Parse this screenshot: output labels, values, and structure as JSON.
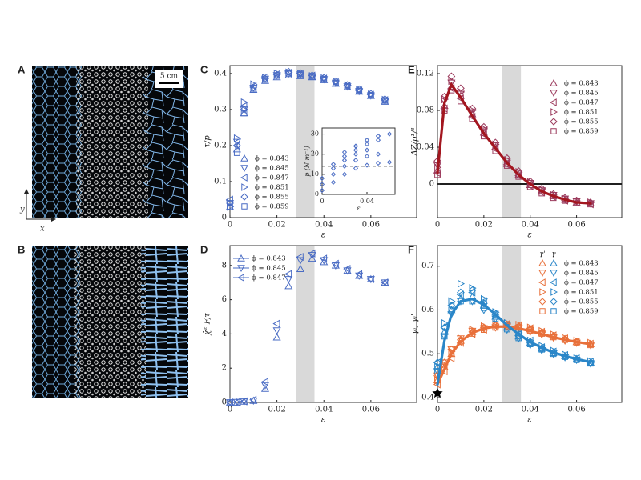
{
  "image_panels": [
    {
      "label": "A",
      "scale_bar": "5 cm",
      "x_axis_label": "x",
      "y_axis_label": "y"
    },
    {
      "label": "B"
    }
  ],
  "chart_data": [
    {
      "type": "scatter",
      "panel_label": "C",
      "x_label": "ε",
      "y_label": "τ/p",
      "xlim": [
        0,
        0.0795
      ],
      "ylim": [
        0,
        0.422
      ],
      "xticks": [
        0,
        0.02,
        0.04,
        0.06
      ],
      "yticks": [
        0,
        0.1,
        0.2,
        0.3,
        0.4
      ],
      "shaded_range": [
        0.028,
        0.036
      ],
      "legend": "lower-left",
      "x": [
        0,
        0.003,
        0.006,
        0.01,
        0.015,
        0.02,
        0.025,
        0.03,
        0.035,
        0.04,
        0.045,
        0.05,
        0.055,
        0.06,
        0.066
      ],
      "series": [
        {
          "name": "ϕ = 0.843",
          "marker": "triangle-up",
          "color": "#4a6cc4",
          "values": [
            0.03,
            0.19,
            0.29,
            0.355,
            0.38,
            0.39,
            0.395,
            0.393,
            0.39,
            0.382,
            0.372,
            0.362,
            0.35,
            0.338,
            0.322
          ]
        },
        {
          "name": "ϕ = 0.845",
          "marker": "triangle-down",
          "color": "#4a6cc4",
          "values": [
            0.04,
            0.21,
            0.3,
            0.36,
            0.385,
            0.395,
            0.4,
            0.397,
            0.392,
            0.384,
            0.374,
            0.364,
            0.351,
            0.339,
            0.324
          ]
        },
        {
          "name": "ϕ = 0.847",
          "marker": "triangle-left",
          "color": "#4a6cc4",
          "values": [
            0.05,
            0.2,
            0.31,
            0.365,
            0.39,
            0.398,
            0.402,
            0.4,
            0.394,
            0.386,
            0.376,
            0.366,
            0.353,
            0.341,
            0.326
          ]
        },
        {
          "name": "ϕ = 0.851",
          "marker": "triangle-right",
          "color": "#4a6cc4",
          "values": [
            0.03,
            0.22,
            0.32,
            0.37,
            0.388,
            0.4,
            0.403,
            0.399,
            0.393,
            0.387,
            0.377,
            0.367,
            0.355,
            0.342,
            0.327
          ]
        },
        {
          "name": "ϕ = 0.855",
          "marker": "diamond",
          "color": "#4a6cc4",
          "values": [
            0.04,
            0.2,
            0.3,
            0.362,
            0.386,
            0.397,
            0.405,
            0.401,
            0.395,
            0.388,
            0.378,
            0.368,
            0.356,
            0.344,
            0.329
          ]
        },
        {
          "name": "ϕ = 0.859",
          "marker": "square",
          "color": "#4a6cc4",
          "values": [
            0.03,
            0.18,
            0.29,
            0.358,
            0.383,
            0.394,
            0.399,
            0.396,
            0.391,
            0.383,
            0.373,
            0.363,
            0.352,
            0.34,
            0.325
          ]
        }
      ]
    },
    {
      "type": "scatter",
      "x_label": "ε",
      "y_label": "p (N m⁻¹)",
      "xlim": [
        0,
        0.065
      ],
      "ylim": [
        0,
        33
      ],
      "xticks": [
        0,
        0.04
      ],
      "yticks": [
        0,
        10,
        20,
        30
      ],
      "reference_line": {
        "value": 14,
        "style": "dashed"
      },
      "x": [
        0,
        0.01,
        0.02,
        0.03,
        0.04,
        0.05,
        0.06
      ],
      "series": [
        {
          "marker": "diamond",
          "color": "#4a6cc4",
          "values": [
            2,
            6,
            10,
            13,
            14.5,
            15.5,
            16
          ]
        },
        {
          "marker": "diamond",
          "color": "#4a6cc4",
          "values": [
            5,
            10,
            14,
            17,
            19,
            20,
            null
          ]
        },
        {
          "marker": "diamond",
          "color": "#4a6cc4",
          "values": [
            8,
            13,
            17,
            20,
            22,
            null,
            null
          ]
        },
        {
          "marker": "diamond",
          "color": "#4a6cc4",
          "values": [
            null,
            15,
            19,
            22,
            25,
            27,
            null
          ]
        },
        {
          "marker": "diamond",
          "color": "#4a6cc4",
          "values": [
            null,
            null,
            21,
            24,
            27,
            29,
            null
          ]
        },
        {
          "marker": "diamond",
          "color": "#4a6cc4",
          "values": [
            null,
            null,
            null,
            24,
            27,
            29,
            30
          ]
        }
      ]
    },
    {
      "type": "scatter",
      "panel_label": "D",
      "x_label": "ε",
      "y_label": "χ̂ᵋ F,τ",
      "xlim": [
        0,
        0.0795
      ],
      "ylim": [
        0,
        9.16
      ],
      "xticks": [
        0,
        0.02,
        0.04,
        0.06
      ],
      "yticks": [
        0,
        2,
        4,
        6,
        8
      ],
      "shaded_range": [
        0.028,
        0.036
      ],
      "legend": "upper-left",
      "x": [
        0,
        0.003,
        0.006,
        0.01,
        0.015,
        0.02,
        0.025,
        0.03,
        0.035,
        0.04,
        0.045,
        0.05,
        0.055,
        0.06,
        0.066
      ],
      "series": [
        {
          "name": "ϕ = 0.843",
          "marker": "triangle-up",
          "color": "#4a6cc4",
          "values": [
            0,
            0,
            0.05,
            0.1,
            0.8,
            3.8,
            6.8,
            7.8,
            8.4,
            8.2,
            8.0,
            7.7,
            7.4,
            7.2,
            7.0
          ]
        },
        {
          "name": "ϕ = 0.845",
          "marker": "triangle-down",
          "color": "#4a6cc4",
          "values": [
            0,
            0.02,
            0.05,
            0.1,
            1.0,
            4.2,
            7.2,
            8.3,
            8.6,
            8.3,
            8.0,
            7.7,
            7.4,
            7.2,
            7.0
          ]
        },
        {
          "name": "ϕ = 0.847",
          "marker": "triangle-left",
          "color": "#4a6cc4",
          "values": [
            0,
            0.02,
            0.06,
            0.15,
            1.2,
            4.6,
            7.5,
            8.5,
            8.7,
            8.4,
            8.1,
            7.8,
            7.5,
            7.2,
            7.0
          ]
        }
      ]
    },
    {
      "type": "scatter",
      "panel_label": "E",
      "x_label": "ε",
      "y_label": "ΔZ/p¹/³",
      "xlim": [
        0,
        0.0795
      ],
      "ylim": [
        -0.0365,
        0.1287
      ],
      "xticks": [
        0,
        0.02,
        0.04,
        0.06
      ],
      "yticks": [
        0,
        0.04,
        0.08,
        0.12
      ],
      "shaded_range": [
        0.028,
        0.036
      ],
      "legend": "upper-right",
      "reference_line": {
        "value": 0,
        "style": "solid"
      },
      "x": [
        0,
        0.003,
        0.006,
        0.01,
        0.015,
        0.02,
        0.025,
        0.03,
        0.035,
        0.04,
        0.045,
        0.05,
        0.055,
        0.06,
        0.066
      ],
      "fit_color": "#a3161f",
      "fit": [
        0.012,
        0.088,
        0.108,
        0.094,
        0.074,
        0.055,
        0.039,
        0.023,
        0.01,
        0,
        -0.008,
        -0.013,
        -0.017,
        -0.02,
        -0.021
      ],
      "series": [
        {
          "name": "ϕ = 0.843",
          "marker": "triangle-up",
          "color": "#9b3a5c",
          "values": [
            0.015,
            0.085,
            0.106,
            0.096,
            0.076,
            0.056,
            0.04,
            0.022,
            0.01,
            -0.001,
            -0.008,
            -0.013,
            -0.017,
            -0.02,
            -0.021
          ]
        },
        {
          "name": "ϕ = 0.845",
          "marker": "triangle-down",
          "color": "#9b3a5c",
          "values": [
            0.02,
            0.09,
            0.11,
            0.098,
            0.078,
            0.058,
            0.042,
            0.025,
            0.012,
            0.001,
            -0.007,
            -0.012,
            -0.016,
            -0.019,
            -0.021
          ]
        },
        {
          "name": "ϕ = 0.847",
          "marker": "triangle-left",
          "color": "#9b3a5c",
          "values": [
            0.012,
            0.082,
            0.104,
            0.093,
            0.073,
            0.054,
            0.038,
            0.021,
            0.009,
            -0.002,
            -0.009,
            -0.014,
            -0.018,
            -0.02,
            -0.022
          ]
        },
        {
          "name": "ϕ = 0.851",
          "marker": "triangle-right",
          "color": "#9b3a5c",
          "values": [
            0.018,
            0.092,
            0.112,
            0.1,
            0.08,
            0.06,
            0.043,
            0.026,
            0.013,
            0.002,
            -0.006,
            -0.012,
            -0.016,
            -0.019,
            -0.02
          ]
        },
        {
          "name": "ϕ = 0.855",
          "marker": "diamond",
          "color": "#9b3a5c",
          "values": [
            0.025,
            0.095,
            0.117,
            0.104,
            0.082,
            0.062,
            0.045,
            0.028,
            0.014,
            0.003,
            -0.005,
            -0.011,
            -0.015,
            -0.018,
            -0.02
          ]
        },
        {
          "name": "ϕ = 0.859",
          "marker": "square",
          "color": "#9b3a5c",
          "values": [
            0.01,
            0.08,
            0.102,
            0.09,
            0.071,
            0.052,
            0.036,
            0.02,
            0.008,
            -0.003,
            -0.01,
            -0.015,
            -0.018,
            -0.021,
            -0.022
          ]
        }
      ]
    },
    {
      "type": "scatter",
      "panel_label": "F",
      "x_label": "ε",
      "y_label": "γₗ, γₗ'",
      "xlim": [
        0,
        0.0795
      ],
      "ylim": [
        0.389,
        0.747
      ],
      "xticks": [
        0,
        0.02,
        0.04,
        0.06
      ],
      "yticks": [
        0.4,
        0.5,
        0.6,
        0.7
      ],
      "shaded_range": [
        0.028,
        0.036
      ],
      "legend": "upper-right",
      "legend_headers": [
        "γ'",
        "γ"
      ],
      "color": "#2a86c8",
      "color_prime": "#e8703a",
      "star": [
        0,
        0.41
      ],
      "x": [
        0,
        0.003,
        0.006,
        0.01,
        0.015,
        0.02,
        0.025,
        0.03,
        0.035,
        0.04,
        0.045,
        0.05,
        0.055,
        0.06,
        0.066
      ],
      "fit": [
        0.43,
        0.53,
        0.59,
        0.62,
        0.625,
        0.612,
        0.59,
        0.565,
        0.545,
        0.527,
        0.514,
        0.503,
        0.495,
        0.488,
        0.481
      ],
      "fit_prime": [
        0.43,
        0.465,
        0.5,
        0.528,
        0.548,
        0.558,
        0.562,
        0.562,
        0.558,
        0.552,
        0.545,
        0.538,
        0.532,
        0.527,
        0.522
      ],
      "series": [
        {
          "name": "ϕ = 0.843",
          "marker": "triangle-up",
          "values": [
            0.47,
            0.55,
            0.6,
            0.625,
            0.63,
            0.61,
            0.585,
            0.56,
            0.54,
            0.525,
            0.512,
            0.502,
            0.495,
            0.488,
            0.48
          ],
          "values_prime": [
            0.44,
            0.47,
            0.5,
            0.53,
            0.55,
            0.56,
            0.565,
            0.566,
            0.562,
            0.556,
            0.548,
            0.54,
            0.533,
            0.527,
            0.522
          ]
        },
        {
          "name": "ϕ = 0.845",
          "marker": "triangle-down",
          "values": [
            0.46,
            0.54,
            0.59,
            0.62,
            0.62,
            0.6,
            0.58,
            0.555,
            0.535,
            0.52,
            0.508,
            0.5,
            0.492,
            0.486,
            0.478
          ],
          "values_prime": [
            0.45,
            0.48,
            0.51,
            0.535,
            0.552,
            0.558,
            0.56,
            0.562,
            0.558,
            0.55,
            0.544,
            0.537,
            0.53,
            0.525,
            0.52
          ]
        },
        {
          "name": "ϕ = 0.847",
          "marker": "triangle-left",
          "values": [
            0.48,
            0.56,
            0.61,
            0.635,
            0.64,
            0.62,
            0.59,
            0.565,
            0.545,
            0.53,
            0.515,
            0.505,
            0.497,
            0.49,
            0.482
          ],
          "values_prime": [
            0.43,
            0.46,
            0.49,
            0.525,
            0.545,
            0.555,
            0.563,
            0.568,
            0.565,
            0.558,
            0.55,
            0.542,
            0.535,
            0.528,
            0.523
          ]
        },
        {
          "name": "ϕ = 0.851",
          "marker": "triangle-right",
          "values": [
            0.47,
            0.57,
            0.62,
            0.66,
            0.65,
            0.625,
            0.595,
            0.57,
            0.548,
            0.53,
            0.518,
            0.507,
            0.498,
            0.49,
            0.483
          ],
          "values_prime": [
            0.44,
            0.475,
            0.505,
            0.535,
            0.555,
            0.563,
            0.568,
            0.57,
            0.566,
            0.56,
            0.552,
            0.544,
            0.536,
            0.53,
            0.525
          ]
        },
        {
          "name": "ϕ = 0.855",
          "marker": "diamond",
          "values": [
            0.48,
            0.56,
            0.61,
            0.64,
            0.645,
            0.615,
            0.59,
            0.562,
            0.542,
            0.526,
            0.513,
            0.503,
            0.494,
            0.487,
            0.479
          ],
          "values_prime": [
            0.45,
            0.48,
            0.51,
            0.532,
            0.55,
            0.56,
            0.566,
            0.567,
            0.563,
            0.557,
            0.549,
            0.541,
            0.534,
            0.528,
            0.523
          ]
        },
        {
          "name": "ϕ = 0.859",
          "marker": "square",
          "values": [
            0.46,
            0.54,
            0.6,
            0.62,
            0.62,
            0.605,
            0.58,
            0.556,
            0.536,
            0.522,
            0.51,
            0.5,
            0.493,
            0.486,
            0.478
          ],
          "values_prime": [
            0.44,
            0.47,
            0.5,
            0.528,
            0.546,
            0.555,
            0.56,
            0.563,
            0.56,
            0.553,
            0.546,
            0.538,
            0.532,
            0.526,
            0.52
          ]
        }
      ]
    }
  ]
}
